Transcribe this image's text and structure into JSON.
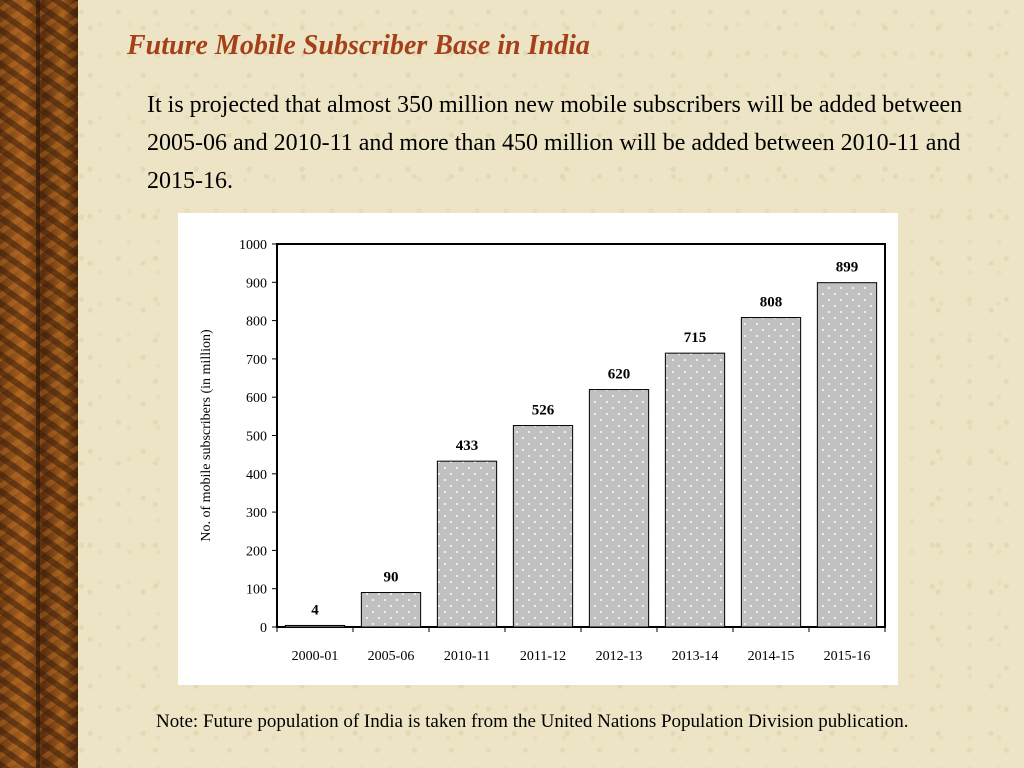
{
  "slide": {
    "title": "Future Mobile Subscriber Base in India",
    "intro": "It is projected that almost 350 million new mobile subscribers will be added between 2005-06 and 2010-11 and more than 450 million will be added between 2010-11 and 2015-16.",
    "note": "Note: Future population of India is taken from the United Nations Population Division publication."
  },
  "chart_data": {
    "type": "bar",
    "categories": [
      "2000-01",
      "2005-06",
      "2010-11",
      "2011-12",
      "2012-13",
      "2013-14",
      "2014-15",
      "2015-16"
    ],
    "values": [
      4,
      90,
      433,
      526,
      620,
      715,
      808,
      899
    ],
    "data_labels": [
      "4",
      "90",
      "433",
      "526",
      "620",
      "715",
      "808",
      "899"
    ],
    "title": "",
    "xlabel": "",
    "ylabel": "No. of mobile subscribers (in million)",
    "ylim": [
      0,
      1000
    ],
    "yticks": [
      0,
      100,
      200,
      300,
      400,
      500,
      600,
      700,
      800,
      900,
      1000
    ],
    "grid": false,
    "colors": {
      "bar_fill": "#c0c0c0",
      "bar_stroke": "#000000",
      "dots": "#ffffff"
    }
  }
}
